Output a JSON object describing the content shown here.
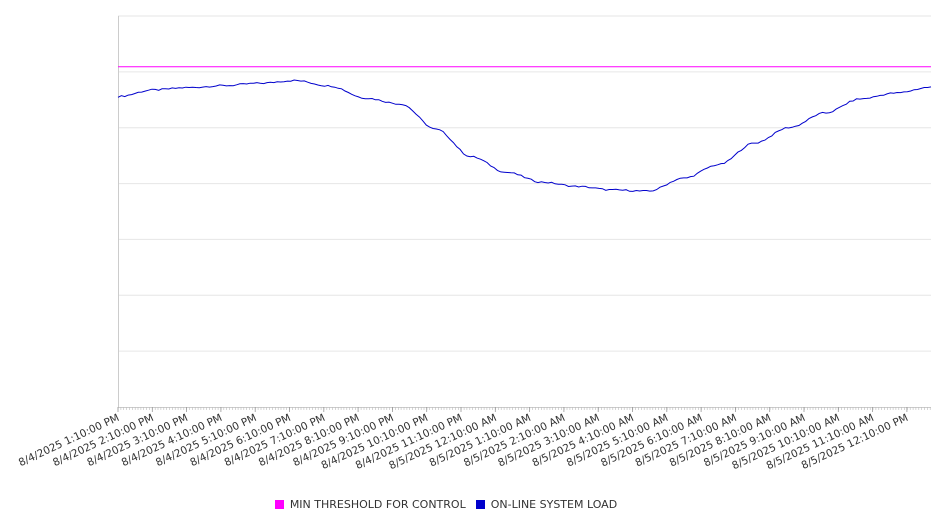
{
  "chart_data": {
    "type": "line",
    "title": "",
    "xlabel": "",
    "ylabel": "",
    "grid": true,
    "legend_position": "bottom",
    "x_tick_labels": [
      "8/4/2025 1:10:00 PM",
      "8/4/2025 2:10:00 PM",
      "8/4/2025 3:10:00 PM",
      "8/4/2025 4:10:00 PM",
      "8/4/2025 5:10:00 PM",
      "8/4/2025 6:10:00 PM",
      "8/4/2025 7:10:00 PM",
      "8/4/2025 8:10:00 PM",
      "8/4/2025 9:10:00 PM",
      "8/4/2025 10:10:00 PM",
      "8/4/2025 11:10:00 PM",
      "8/5/2025 12:10:00 AM",
      "8/5/2025 1:10:00 AM",
      "8/5/2025 2:10:00 AM",
      "8/5/2025 3:10:00 AM",
      "8/5/2025 4:10:00 AM",
      "8/5/2025 5:10:00 AM",
      "8/5/2025 6:10:00 AM",
      "8/5/2025 7:10:00 AM",
      "8/5/2025 8:10:00 AM",
      "8/5/2025 9:10:00 AM",
      "8/5/2025 10:10:00 AM",
      "8/5/2025 11:10:00 AM",
      "8/5/2025 12:10:00 PM"
    ],
    "series": [
      {
        "name": "MIN THRESHOLD FOR CONTROL",
        "color": "#ff00ff",
        "values": [
          0.87,
          0.87,
          0.87,
          0.87,
          0.87,
          0.87,
          0.87,
          0.87,
          0.87,
          0.87,
          0.87,
          0.87,
          0.87,
          0.87,
          0.87,
          0.87,
          0.87,
          0.87,
          0.87,
          0.87,
          0.87,
          0.87,
          0.87,
          0.87
        ]
      },
      {
        "name": "ON-LINE SYSTEM LOAD",
        "color": "#0000cc",
        "values": [
          0.794,
          0.811,
          0.817,
          0.822,
          0.828,
          0.835,
          0.821,
          0.79,
          0.775,
          0.71,
          0.64,
          0.6,
          0.575,
          0.564,
          0.555,
          0.552,
          0.585,
          0.62,
          0.675,
          0.715,
          0.752,
          0.788,
          0.803,
          0.818
        ]
      }
    ],
    "ylim": [
      0,
      1.0
    ],
    "y_grid_step": 0.142857
  }
}
